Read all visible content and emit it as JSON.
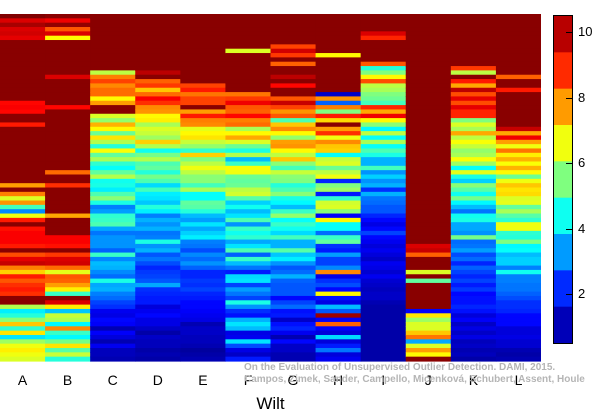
{
  "chart_data": {
    "type": "heatmap",
    "categories": [
      "A",
      "B",
      "C",
      "D",
      "E",
      "F",
      "G",
      "H",
      "I",
      "J",
      "K",
      "L"
    ],
    "xlabel": "Wilt",
    "rows": 80,
    "colorbar": {
      "ticks": [
        2,
        4,
        6,
        8,
        10
      ],
      "range": [
        0.5,
        10.5
      ]
    },
    "colorscale": [
      "#00007f",
      "#0000ff",
      "#007fff",
      "#00ffff",
      "#7fff7f",
      "#ffff00",
      "#ff7f00",
      "#ff0000",
      "#7f0000"
    ],
    "series_profiles": [
      {
        "name": "A",
        "values": [
          10.5,
          9.6,
          10.1,
          9.6,
          9.7,
          9.5,
          10.4,
          10.4,
          10.4,
          10.4,
          10.4,
          10.4,
          10.4,
          10.4,
          10.4,
          10.4,
          10.4,
          10.4,
          10.4,
          10.4,
          9.2,
          9.3,
          9.2,
          10.4,
          10.4,
          9.0,
          10.4,
          10.4,
          10.4,
          10.4,
          10.4,
          10.4,
          10.4,
          10.4,
          10.4,
          10.4,
          10.4,
          10.4,
          10.4,
          7.7,
          10.4,
          8.0,
          6.4,
          7.8,
          4.9,
          3.1,
          6.6,
          9.0,
          10.4,
          9.1,
          9.3,
          9.3,
          9.3,
          9.0,
          10.4,
          8.5,
          9.5,
          9.8,
          8.0,
          7.2,
          9.0,
          8.4,
          8.8,
          9.0,
          8.8,
          10.4,
          10.4,
          6.0,
          4.1,
          4.6,
          5.6,
          7.3,
          4.7,
          7.0,
          4.0,
          5.8,
          6.6,
          6.9,
          6.6,
          6.4
        ]
      },
      {
        "name": "B",
        "values": [
          10.4,
          9.4,
          10.3,
          8.4,
          9.6,
          6.8,
          10.4,
          10.4,
          10.4,
          10.4,
          10.4,
          10.4,
          10.4,
          10.4,
          9.6,
          10.4,
          10.4,
          10.4,
          10.4,
          10.4,
          10.4,
          9.2,
          10.4,
          10.4,
          10.4,
          10.4,
          10.4,
          10.4,
          10.4,
          10.4,
          10.4,
          10.4,
          10.4,
          10.4,
          10.4,
          10.4,
          8.2,
          10.4,
          10.4,
          8.8,
          10.4,
          10.4,
          10.4,
          10.4,
          10.4,
          10.4,
          7.6,
          10.4,
          10.4,
          10.4,
          10.4,
          9.3,
          9.3,
          9.1,
          10.4,
          8.7,
          9.6,
          9.7,
          8.2,
          6.5,
          8.4,
          8.3,
          7.7,
          6.9,
          4.8,
          10.4,
          9.6,
          6.9,
          3.7,
          6.2,
          6.0,
          4.2,
          7.9,
          4.8,
          4.2,
          5.4,
          7.0,
          5.1,
          6.2,
          4.6
        ]
      },
      {
        "name": "C",
        "values": [
          10.4,
          10.4,
          10.4,
          10.4,
          10.4,
          10.4,
          10.4,
          10.4,
          10.4,
          10.4,
          10.4,
          10.4,
          10.4,
          6.1,
          8.0,
          8.6,
          7.9,
          8.2,
          8.2,
          6.8,
          7.7,
          10.4,
          10.4,
          6.4,
          5.7,
          7.5,
          6.8,
          5.3,
          7.0,
          6.0,
          4.6,
          6.7,
          5.2,
          5.9,
          4.7,
          4.3,
          5.2,
          6.0,
          4.4,
          4.5,
          4.1,
          5.0,
          5.6,
          4.5,
          3.0,
          3.3,
          4.7,
          4.8,
          5.0,
          3.4,
          2.9,
          3.2,
          3.2,
          3.2,
          2.7,
          4.8,
          3.1,
          3.6,
          3.5,
          3.1,
          2.8,
          4.5,
          3.4,
          3.5,
          3.0,
          2.8,
          2.4,
          2.2,
          1.6,
          1.5,
          1.8,
          1.7,
          1.0,
          1.7,
          1.4,
          1.0,
          1.6,
          1.1,
          1.1,
          1.0
        ]
      },
      {
        "name": "D",
        "values": [
          10.4,
          10.4,
          10.4,
          10.4,
          10.4,
          10.4,
          10.4,
          10.4,
          10.4,
          10.4,
          10.4,
          10.4,
          10.4,
          9.9,
          10.4,
          8.3,
          8.7,
          7.3,
          8.2,
          9.3,
          8.8,
          7.9,
          7.8,
          6.8,
          6.9,
          5.9,
          6.4,
          6.2,
          5.8,
          7.2,
          6.0,
          4.4,
          5.4,
          6.0,
          5.0,
          5.2,
          4.6,
          5.4,
          5.0,
          3.9,
          4.9,
          4.1,
          4.0,
          3.7,
          4.6,
          4.1,
          3.0,
          3.5,
          3.2,
          3.5,
          2.9,
          3.0,
          4.5,
          3.2,
          3.5,
          2.6,
          2.9,
          2.5,
          2.1,
          2.3,
          2.4,
          2.6,
          3.4,
          2.2,
          2.1,
          2.0,
          2.0,
          1.4,
          1.6,
          1.8,
          1.5,
          1.5,
          1.2,
          0.9,
          1.2,
          1.1,
          1.1,
          0.9,
          1.0,
          0.9
        ]
      },
      {
        "name": "E",
        "values": [
          10.4,
          10.4,
          10.4,
          10.4,
          10.4,
          10.4,
          10.4,
          10.4,
          10.4,
          10.4,
          10.4,
          10.4,
          10.4,
          10.4,
          10.4,
          10.4,
          8.6,
          9.0,
          8.1,
          8.6,
          8.6,
          10.4,
          7.7,
          9.0,
          8.0,
          7.9,
          6.5,
          6.8,
          7.0,
          6.2,
          5.7,
          4.7,
          7.2,
          5.5,
          6.1,
          6.6,
          6.1,
          5.6,
          5.6,
          4.9,
          5.9,
          4.3,
          4.3,
          5.2,
          5.1,
          4.6,
          3.6,
          3.3,
          4.0,
          3.4,
          3.8,
          4.1,
          3.0,
          2.9,
          2.5,
          3.1,
          2.8,
          3.2,
          2.7,
          2.1,
          2.1,
          2.3,
          2.2,
          2.4,
          2.1,
          2.0,
          1.8,
          1.8,
          1.7,
          1.6,
          1.5,
          1.0,
          1.2,
          1.2,
          1.1,
          1.1,
          1.0,
          0.8,
          0.9,
          1.0
        ]
      },
      {
        "name": "F",
        "values": [
          10.4,
          10.4,
          10.4,
          10.4,
          10.4,
          10.4,
          10.4,
          10.4,
          6.4,
          10.4,
          10.4,
          10.4,
          10.4,
          10.4,
          10.4,
          10.4,
          10.4,
          10.4,
          8.1,
          8.7,
          9.4,
          8.4,
          8.3,
          9.2,
          8.0,
          8.2,
          5.9,
          6.8,
          7.6,
          6.4,
          5.3,
          4.5,
          6.0,
          3.6,
          4.8,
          6.7,
          6.6,
          5.3,
          5.2,
          5.3,
          6.1,
          6.3,
          5.1,
          3.8,
          4.4,
          3.6,
          4.0,
          5.0,
          3.2,
          4.8,
          4.4,
          4.7,
          3.4,
          4.0,
          5.0,
          2.7,
          4.8,
          3.6,
          2.9,
          2.0,
          3.9,
          4.0,
          2.4,
          3.3,
          2.9,
          2.4,
          4.5,
          3.2,
          2.2,
          1.9,
          3.5,
          4.0,
          3.6,
          1.5,
          1.6,
          4.0,
          2.5,
          1.5,
          1.2,
          2.0
        ]
      },
      {
        "name": "G",
        "values": [
          10.4,
          10.4,
          10.4,
          10.4,
          10.4,
          10.4,
          10.4,
          8.6,
          9.7,
          8.7,
          10.4,
          8.3,
          10.4,
          10.4,
          9.9,
          10.4,
          9.2,
          10.4,
          10.4,
          8.4,
          9.8,
          8.6,
          7.8,
          8.4,
          5.0,
          7.3,
          7.9,
          6.8,
          5.7,
          7.7,
          7.8,
          6.8,
          6.1,
          7.3,
          5.6,
          4.9,
          6.2,
          5.6,
          5.5,
          4.6,
          5.0,
          5.6,
          4.5,
          4.2,
          3.6,
          4.8,
          5.7,
          4.3,
          4.8,
          4.4,
          3.9,
          4.9,
          3.5,
          3.5,
          5.1,
          3.7,
          4.1,
          3.2,
          2.6,
          2.8,
          3.5,
          2.7,
          2.6,
          2.6,
          2.6,
          1.8,
          2.4,
          2.8,
          1.9,
          2.0,
          1.2,
          1.9,
          2.1,
          1.6,
          1.0,
          1.8,
          1.2,
          1.2,
          1.0,
          1.0
        ]
      },
      {
        "name": "H",
        "values": [
          10.4,
          10.4,
          10.4,
          10.4,
          10.4,
          10.4,
          10.4,
          10.4,
          10.4,
          6.8,
          10.4,
          10.4,
          10.4,
          10.4,
          10.4,
          10.4,
          10.4,
          10.4,
          1.2,
          7.8,
          2.7,
          8.0,
          5.5,
          9.0,
          7.1,
          10.4,
          7.7,
          8.8,
          6.6,
          7.9,
          7.3,
          7.2,
          4.3,
          6.2,
          6.4,
          5.3,
          6.1,
          6.6,
          2.1,
          5.5,
          5.8,
          2.0,
          4.7,
          6.3,
          6.4,
          5.6,
          1.7,
          6.8,
          4.3,
          4.3,
          2.8,
          4.8,
          5.2,
          2.2,
          2.0,
          3.3,
          2.4,
          2.4,
          3.1,
          7.9,
          1.5,
          2.2,
          2.5,
          1.8,
          6.8,
          1.9,
          1.5,
          3.6,
          2.6,
          10.2,
          1.7,
          8.3,
          1.7,
          1.4,
          3.9,
          1.4,
          2.0,
          2.9,
          1.4,
          1.6
        ]
      },
      {
        "name": "I",
        "values": [
          10.4,
          10.4,
          10.4,
          10.4,
          9.6,
          8.9,
          10.4,
          10.4,
          10.4,
          10.4,
          10.4,
          8.4,
          4.6,
          5.5,
          6.8,
          8.5,
          6.1,
          5.9,
          5.5,
          5.3,
          4.9,
          8.9,
          7.6,
          9.4,
          6.8,
          5.6,
          4.2,
          6.1,
          4.3,
          5.9,
          4.3,
          5.0,
          4.5,
          3.5,
          3.5,
          4.9,
          3.2,
          3.8,
          3.2,
          3.5,
          2.2,
          3.5,
          2.9,
          2.8,
          2.6,
          2.6,
          2.1,
          1.8,
          1.5,
          1.8,
          2.4,
          1.8,
          1.6,
          1.4,
          1.6,
          1.4,
          1.2,
          1.6,
          1.5,
          1.3,
          1.6,
          1.3,
          1.2,
          1.1,
          1.2,
          1.2,
          1.0,
          0.9,
          0.9,
          0.9,
          0.9,
          0.9,
          0.9,
          0.9,
          0.9,
          0.9,
          0.9,
          0.9,
          0.9,
          0.9
        ]
      },
      {
        "name": "J",
        "values": [
          10.4,
          10.4,
          10.4,
          10.4,
          10.4,
          10.4,
          10.4,
          10.4,
          10.4,
          10.4,
          10.4,
          10.4,
          10.4,
          10.4,
          10.4,
          10.4,
          10.4,
          10.4,
          10.4,
          10.4,
          10.4,
          10.4,
          10.4,
          10.4,
          10.4,
          10.4,
          10.4,
          10.4,
          10.4,
          10.4,
          10.4,
          10.4,
          10.4,
          10.4,
          10.4,
          10.4,
          10.4,
          10.4,
          10.4,
          10.4,
          10.4,
          10.4,
          10.4,
          10.4,
          10.4,
          10.4,
          10.4,
          10.4,
          10.4,
          10.4,
          10.4,
          10.4,
          10.4,
          9.6,
          9.8,
          8.3,
          10.4,
          10.4,
          10.4,
          6.4,
          10.4,
          5.2,
          10.4,
          10.4,
          10.4,
          10.4,
          10.4,
          10.4,
          1.7,
          7.0,
          5.8,
          6.4,
          6.4,
          7.3,
          8.1,
          3.4,
          6.4,
          7.7,
          6.8,
          10.4
        ]
      },
      {
        "name": "K",
        "values": [
          10.4,
          10.4,
          10.4,
          10.4,
          10.4,
          10.4,
          10.4,
          10.4,
          10.4,
          10.4,
          10.4,
          10.4,
          8.7,
          6.1,
          10.4,
          9.0,
          7.6,
          9.9,
          8.5,
          9.5,
          8.5,
          9.5,
          8.9,
          8.9,
          5.5,
          6.4,
          5.9,
          7.6,
          6.1,
          6.7,
          6.2,
          5.7,
          5.9,
          6.7,
          5.8,
          4.3,
          6.5,
          4.5,
          3.8,
          5.6,
          5.1,
          4.4,
          5.4,
          4.2,
          3.6,
          2.9,
          4.4,
          4.5,
          3.4,
          3.4,
          3.2,
          5.4,
          2.8,
          2.9,
          3.3,
          2.5,
          2.8,
          2.1,
          2.7,
          2.4,
          2.1,
          2.4,
          2.0,
          2.3,
          1.8,
          1.9,
          1.9,
          2.1,
          1.9,
          1.4,
          1.7,
          1.2,
          1.5,
          1.2,
          1.5,
          1.1,
          1.2,
          1.0,
          1.1,
          0.9
        ]
      },
      {
        "name": "L",
        "values": [
          10.4,
          10.4,
          10.4,
          10.4,
          10.4,
          10.4,
          10.4,
          10.4,
          10.4,
          10.4,
          10.4,
          10.4,
          10.4,
          10.4,
          8.3,
          10.4,
          10.4,
          9.0,
          10.4,
          10.4,
          10.4,
          10.4,
          10.4,
          10.4,
          10.4,
          10.4,
          9.8,
          7.6,
          9.4,
          7.7,
          6.6,
          8.1,
          6.9,
          7.5,
          6.7,
          7.5,
          6.8,
          5.3,
          6.6,
          7.3,
          7.0,
          7.1,
          6.4,
          6.5,
          5.2,
          5.9,
          5.1,
          4.7,
          6.6,
          6.6,
          4.7,
          4.6,
          5.5,
          4.2,
          4.3,
          3.6,
          3.8,
          3.8,
          3.0,
          4.4,
          3.0,
          3.0,
          2.9,
          2.9,
          2.7,
          2.5,
          2.2,
          2.2,
          2.1,
          1.8,
          1.8,
          1.8,
          1.4,
          1.4,
          1.5,
          1.3,
          1.3,
          1.0,
          0.9,
          1.0
        ]
      }
    ]
  },
  "caption": {
    "line1": "On the Evaluation of Unsupervised Outlier Detection. DAMI, 2015.",
    "line2": "Campos, Zimek, Sander, Campello, Micenková, Schubert, Assent, Houle"
  }
}
